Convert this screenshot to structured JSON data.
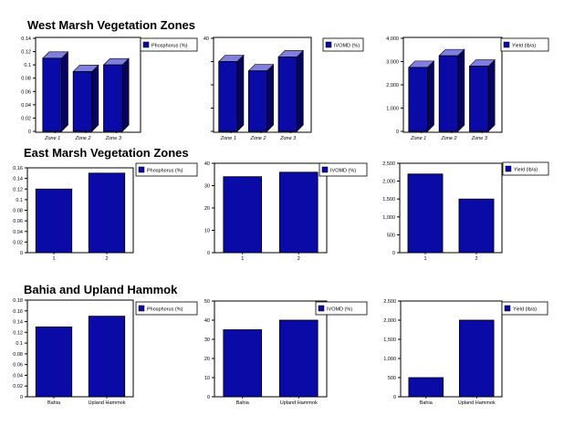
{
  "sections": [
    {
      "title": "West Marsh Vegetation Zones"
    },
    {
      "title": "East Marsh Vegetation Zones"
    },
    {
      "title": "Bahia and Upland Hammok"
    }
  ],
  "colors": {
    "bar": "#0a0aa6",
    "bar_top": "#7f7fe0",
    "bar_side": "#050560",
    "frame": "#000000"
  },
  "chart_data": [
    {
      "type": "bar",
      "style": "3d",
      "section": "West Marsh Vegetation Zones",
      "categories": [
        "Zone 1",
        "Zone 2",
        "Zone 3"
      ],
      "values": [
        0.11,
        0.09,
        0.1
      ],
      "ylim": [
        0,
        0.14
      ],
      "yticks": [
        "0",
        "0.02",
        "0.04",
        "0.06",
        "0.08",
        "0.1",
        "0.12",
        "0.14"
      ],
      "legend": "Phosphorus (%)"
    },
    {
      "type": "bar",
      "style": "3d",
      "section": "West Marsh Vegetation Zones",
      "categories": [
        "Zone 1",
        "Zone 2",
        "Zone 3"
      ],
      "values": [
        30,
        26,
        32
      ],
      "ylim": [
        0,
        40
      ],
      "yticks": [
        "",
        "",
        "",
        "",
        "40"
      ],
      "legend": "IVOMD (%)"
    },
    {
      "type": "bar",
      "style": "3d",
      "section": "West Marsh Vegetation Zones",
      "categories": [
        "Zone 1",
        "Zone 2",
        "Zone 3"
      ],
      "values": [
        2750,
        3250,
        2800
      ],
      "ylim": [
        0,
        4000
      ],
      "yticks": [
        "0",
        "1,000",
        "2,000",
        "3,000",
        "4,000"
      ],
      "legend": "Yield (lb/a)"
    },
    {
      "type": "bar",
      "style": "flat",
      "section": "East Marsh Vegetation Zones",
      "categories": [
        "1",
        "2"
      ],
      "values": [
        0.12,
        0.15
      ],
      "ylim": [
        0,
        0.16
      ],
      "yticks": [
        "0",
        "0.02",
        "0.04",
        "0.06",
        "0.08",
        "0.1",
        "0.12",
        "0.14",
        "0.16"
      ],
      "legend": "Phosphorus (%)"
    },
    {
      "type": "bar",
      "style": "flat",
      "section": "East Marsh Vegetation Zones",
      "categories": [
        "1",
        "2"
      ],
      "values": [
        34,
        36
      ],
      "ylim": [
        0,
        40
      ],
      "yticks": [
        "0",
        "10",
        "20",
        "30",
        "40"
      ],
      "legend": "IVOMD (%)"
    },
    {
      "type": "bar",
      "style": "flat",
      "section": "East Marsh Vegetation Zones",
      "categories": [
        "1",
        "2"
      ],
      "values": [
        2200,
        1500
      ],
      "ylim": [
        0,
        2500
      ],
      "yticks": [
        "0",
        "500",
        "1,000",
        "1,500",
        "2,000",
        "2,500"
      ],
      "legend": "Yield (lb/a)"
    },
    {
      "type": "bar",
      "style": "flat",
      "section": "Bahia and Upland Hammok",
      "categories": [
        "Bahia",
        "Upland Hammok"
      ],
      "values": [
        0.13,
        0.15
      ],
      "ylim": [
        0,
        0.18
      ],
      "yticks": [
        "0",
        "0.02",
        "0.04",
        "0.06",
        "0.08",
        "0.1",
        "0.12",
        "0.14",
        "0.16",
        "0.18"
      ],
      "legend": "Phosphorus (%)"
    },
    {
      "type": "bar",
      "style": "flat",
      "section": "Bahia and Upland Hammok",
      "categories": [
        "Bahia",
        "Upland Hammok"
      ],
      "values": [
        35,
        40
      ],
      "ylim": [
        0,
        50
      ],
      "yticks": [
        "0",
        "10",
        "20",
        "30",
        "40",
        "50"
      ],
      "legend": "IVOMD (%)"
    },
    {
      "type": "bar",
      "style": "flat",
      "section": "Bahia and Upland Hammok",
      "categories": [
        "Bahia",
        "Upland Hammok"
      ],
      "values": [
        500,
        2000
      ],
      "ylim": [
        0,
        2500
      ],
      "yticks": [
        "0",
        "500",
        "1,000",
        "1,500",
        "2,000",
        "2,500"
      ],
      "legend": "Yield (lb/a)"
    }
  ]
}
